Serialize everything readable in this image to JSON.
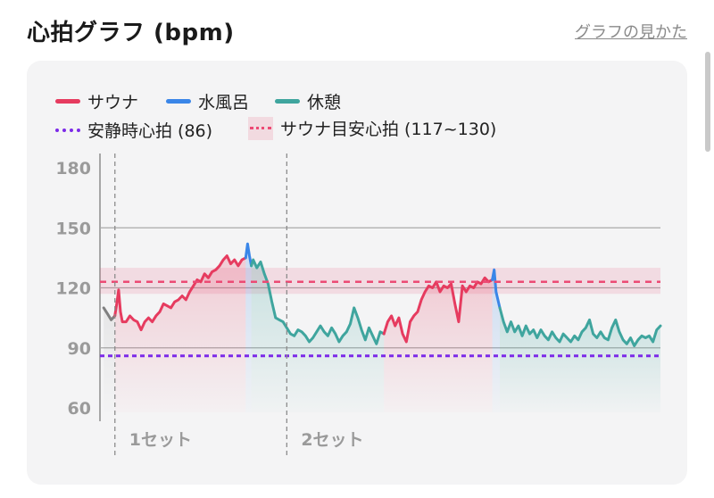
{
  "header": {
    "title": "心拍グラフ (bpm)",
    "help_link": "グラフの見かた"
  },
  "colors": {
    "sauna": "#e63b5f",
    "cold_bath": "#3a86e8",
    "rest": "#3fa59e",
    "resting_hr": "#7c2ae8",
    "sauna_target": "#ec4a74",
    "pre": "#808080"
  },
  "chart_data": {
    "type": "line",
    "legend": [
      {
        "key": "sauna",
        "label": "サウナ",
        "style": "solid"
      },
      {
        "key": "cold_bath",
        "label": "水風呂",
        "style": "solid"
      },
      {
        "key": "rest",
        "label": "休憩",
        "style": "solid"
      },
      {
        "key": "resting_hr",
        "label": "安静時心拍 (86)",
        "style": "dotted"
      },
      {
        "key": "sauna_target",
        "label": "サウナ目安心拍 (117~130)",
        "style": "band"
      }
    ],
    "y_ticks": [
      "180",
      "150",
      "120",
      "90",
      "60"
    ],
    "ylim": [
      60,
      180
    ],
    "resting_hr": 86,
    "target_band": [
      117,
      130
    ],
    "target_line": 123,
    "sets": [
      {
        "label": "1セット",
        "start": 4
      },
      {
        "label": "2セット",
        "start": 50
      }
    ],
    "xlim": [
      0,
      100
    ],
    "series": [
      {
        "key": "pre",
        "points": [
          [
            1,
            110
          ],
          [
            2,
            107
          ],
          [
            3,
            104
          ],
          [
            4,
            106
          ]
        ]
      },
      {
        "key": "sauna",
        "points": [
          [
            4,
            106
          ],
          [
            4.5,
            112
          ],
          [
            5,
            119
          ],
          [
            5.5,
            108
          ],
          [
            6,
            103
          ],
          [
            7,
            103
          ],
          [
            8,
            106
          ],
          [
            9,
            104
          ],
          [
            10,
            103
          ],
          [
            11,
            99
          ],
          [
            12,
            103
          ],
          [
            13,
            105
          ],
          [
            14,
            103
          ],
          [
            15,
            106
          ],
          [
            16,
            108
          ],
          [
            17,
            112
          ],
          [
            18,
            111
          ],
          [
            19,
            110
          ],
          [
            20,
            113
          ],
          [
            21,
            114
          ],
          [
            22,
            116
          ],
          [
            23,
            114
          ],
          [
            24,
            118
          ],
          [
            25,
            121
          ],
          [
            26,
            124
          ],
          [
            27,
            123
          ],
          [
            28,
            127
          ],
          [
            29,
            125
          ],
          [
            30,
            128
          ],
          [
            31,
            129
          ],
          [
            32,
            131
          ],
          [
            33,
            134
          ],
          [
            34,
            136
          ],
          [
            35,
            132
          ],
          [
            36,
            134
          ],
          [
            37,
            131
          ],
          [
            38,
            134
          ],
          [
            39,
            135
          ]
        ]
      },
      {
        "key": "cold_bath",
        "points": [
          [
            39,
            135
          ],
          [
            39.5,
            142
          ],
          [
            40,
            136
          ],
          [
            40.5,
            131
          ]
        ]
      },
      {
        "key": "rest",
        "points": [
          [
            40.5,
            131
          ],
          [
            41,
            134
          ],
          [
            42,
            130
          ],
          [
            43,
            133
          ],
          [
            44,
            127
          ],
          [
            45,
            122
          ],
          [
            46,
            113
          ],
          [
            47,
            105
          ],
          [
            48,
            104
          ],
          [
            49,
            103
          ],
          [
            50,
            100
          ],
          [
            51,
            97
          ],
          [
            52,
            96
          ],
          [
            53,
            99
          ],
          [
            54,
            98
          ],
          [
            55,
            96
          ],
          [
            56,
            93
          ],
          [
            57,
            95
          ],
          [
            58,
            98
          ],
          [
            59,
            101
          ],
          [
            60,
            98
          ],
          [
            61,
            96
          ],
          [
            62,
            100
          ],
          [
            63,
            97
          ],
          [
            64,
            93
          ],
          [
            65,
            96
          ],
          [
            66,
            98
          ],
          [
            67,
            102
          ],
          [
            68,
            110
          ],
          [
            69,
            105
          ],
          [
            70,
            99
          ],
          [
            71,
            94
          ],
          [
            72,
            100
          ],
          [
            73,
            96
          ],
          [
            74,
            92
          ],
          [
            75,
            98
          ],
          [
            76,
            97
          ]
        ]
      },
      {
        "key": "sauna",
        "points": [
          [
            76,
            97
          ],
          [
            77,
            103
          ],
          [
            78,
            106
          ],
          [
            79,
            101
          ],
          [
            80,
            105
          ],
          [
            81,
            97
          ],
          [
            82,
            93
          ],
          [
            83,
            103
          ],
          [
            84,
            106
          ],
          [
            85,
            108
          ],
          [
            86,
            114
          ],
          [
            87,
            118
          ],
          [
            88,
            121
          ],
          [
            89,
            120
          ],
          [
            90,
            123
          ],
          [
            91,
            118
          ],
          [
            92,
            121
          ],
          [
            93,
            120
          ],
          [
            94,
            122
          ],
          [
            95,
            112
          ],
          [
            96,
            103
          ],
          [
            97,
            121
          ],
          [
            98,
            118
          ],
          [
            99,
            121
          ],
          [
            100,
            120
          ],
          [
            101,
            123
          ],
          [
            102,
            122
          ],
          [
            103,
            125
          ],
          [
            104,
            123
          ],
          [
            105,
            124
          ]
        ]
      },
      {
        "key": "cold_bath",
        "points": [
          [
            105,
            124
          ],
          [
            105.5,
            129
          ],
          [
            106,
            118
          ],
          [
            107,
            110
          ]
        ]
      },
      {
        "key": "rest",
        "points": [
          [
            107,
            110
          ],
          [
            108,
            103
          ],
          [
            109,
            98
          ],
          [
            110,
            103
          ],
          [
            111,
            98
          ],
          [
            112,
            101
          ],
          [
            113,
            96
          ],
          [
            114,
            101
          ],
          [
            115,
            97
          ],
          [
            116,
            99
          ],
          [
            117,
            95
          ],
          [
            118,
            99
          ],
          [
            119,
            96
          ],
          [
            120,
            94
          ],
          [
            121,
            98
          ],
          [
            122,
            95
          ],
          [
            123,
            93
          ],
          [
            124,
            97
          ],
          [
            125,
            95
          ],
          [
            126,
            93
          ],
          [
            127,
            96
          ],
          [
            128,
            94
          ],
          [
            129,
            98
          ],
          [
            130,
            100
          ],
          [
            131,
            104
          ],
          [
            132,
            97
          ],
          [
            133,
            95
          ],
          [
            134,
            98
          ],
          [
            135,
            95
          ],
          [
            136,
            94
          ],
          [
            137,
            100
          ],
          [
            138,
            104
          ],
          [
            139,
            98
          ],
          [
            140,
            94
          ],
          [
            141,
            92
          ],
          [
            142,
            95
          ],
          [
            143,
            91
          ],
          [
            144,
            94
          ],
          [
            145,
            96
          ],
          [
            146,
            95
          ],
          [
            147,
            96
          ],
          [
            148,
            93
          ],
          [
            149,
            99
          ],
          [
            150,
            101
          ]
        ]
      }
    ]
  }
}
